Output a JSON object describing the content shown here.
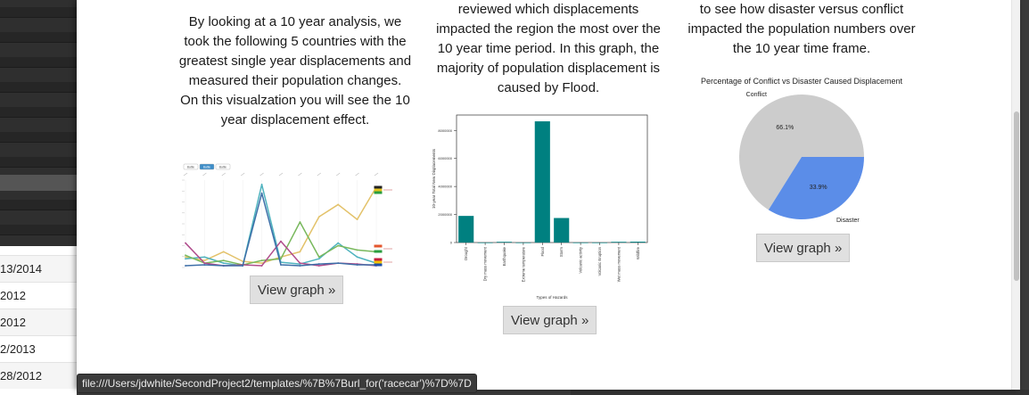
{
  "background_table": {
    "rows": [
      "13/2014",
      "2012",
      "2012",
      "2/2013",
      "28/2012"
    ]
  },
  "modal": {
    "col1": {
      "description": "By looking at a 10 year analysis, we took the following 5 countries with the greatest single year displacements and measured their population changes. On this visualzation you will see the 10 year displacement effect.",
      "button": "View graph »",
      "mini_tabs": [
        "Battle",
        "Battle",
        "Battle"
      ]
    },
    "col2": {
      "description": "reviewed which displacements impacted the region the most over the 10 year time period. In this graph, the majority of population displacement is caused by Flood.",
      "button": "View graph »"
    },
    "col3": {
      "description": "to see how disaster versus conflict impacted the population numbers over the 10 year time frame.",
      "button": "View graph »"
    }
  },
  "status_bar": {
    "url": "file:///Users/jdwhite/SecondProject2/templates/%7B%7Burl_for('racecar')%7D%7D"
  },
  "colors": {
    "teal_bar": "#008080",
    "conflict_slice": "#cccccc",
    "disaster_slice": "#5b8de8"
  },
  "chart_data": [
    {
      "type": "bar",
      "ylabel": "10-year Total New Displacements",
      "xlabel": "Types of Hazards",
      "categories": [
        "Drought",
        "Dry mass movement",
        "Earthquake",
        "Extreme temperature",
        "Flood",
        "Storm",
        "Volcanic activity",
        "Volcanic Eruption",
        "Wet mass movement",
        "Wildfire"
      ],
      "values": [
        1900000,
        0,
        50000,
        0,
        8650000,
        1750000,
        0,
        0,
        50000,
        60000
      ],
      "yticks": [
        "0",
        "2000000",
        "4000000",
        "6000000",
        "8000000"
      ],
      "ylim": [
        0,
        9100000
      ]
    },
    {
      "type": "pie",
      "title": "Percentage of Conflict vs Disaster Caused Displacement",
      "labels": [
        "Conflict",
        "Disaster"
      ],
      "values": [
        66.1,
        33.9
      ],
      "value_labels": [
        "66.1%",
        "33.9%"
      ]
    },
    {
      "type": "line",
      "series": [
        {
          "color": "#e3c26a",
          "values": [
            0.12,
            0.08,
            0.18,
            0.07,
            0.05,
            0.12,
            0.18,
            0.58,
            0.72,
            0.55,
            0.92
          ]
        },
        {
          "color": "#4fb3bf",
          "values": [
            0.1,
            0.12,
            0.05,
            0.02,
            0.95,
            0.06,
            0.04,
            0.1,
            0.28,
            0.12,
            0.05
          ]
        },
        {
          "color": "#78b85c",
          "values": [
            0.14,
            0.05,
            0.08,
            0.03,
            0.08,
            0.1,
            0.52,
            0.12,
            0.25,
            0.2,
            0.18
          ]
        },
        {
          "color": "#b04c8c",
          "values": [
            0.28,
            0.05,
            0.02,
            0.03,
            0.02,
            0.3,
            0.05,
            0.02,
            0.05,
            0.04,
            0.02
          ]
        },
        {
          "color": "#3d6fa8",
          "values": [
            0.02,
            0.03,
            0.02,
            0.02,
            0.85,
            0.03,
            0.02,
            0.04,
            0.05,
            0.03,
            0.03
          ]
        }
      ]
    }
  ]
}
